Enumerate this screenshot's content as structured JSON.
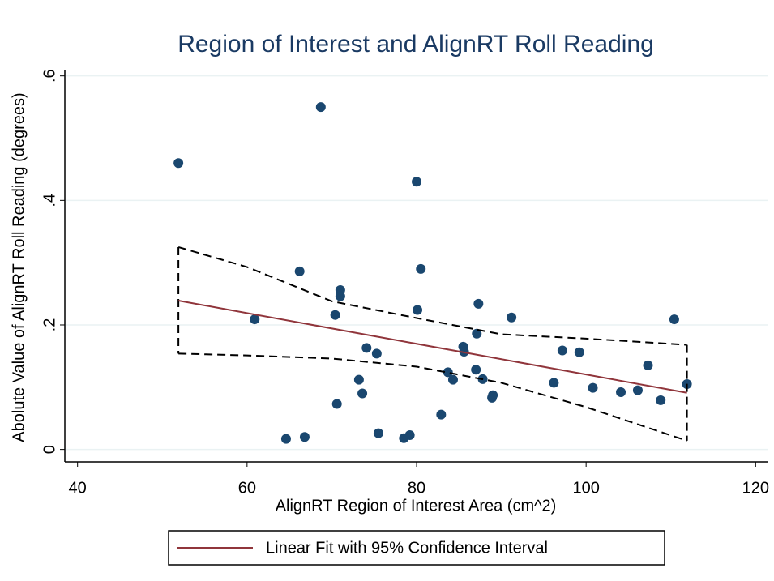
{
  "chart_data": {
    "type": "scatter",
    "title": "Region of Interest and AlignRT Roll Reading",
    "xlabel": "AlignRT Region of Interest Area (cm^2)",
    "ylabel": "Abolute Value of AlignRT Roll Reading (degrees)",
    "xlim": [
      38.5,
      121.5
    ],
    "ylim": [
      -0.02,
      0.61
    ],
    "xticks": [
      40,
      60,
      80,
      100,
      120
    ],
    "yticks": [
      0,
      {
        "value": 0.2,
        "label": ".2"
      },
      {
        "value": 0.4,
        "label": ".4"
      },
      {
        "value": 0.6,
        "label": ".6"
      }
    ],
    "grid": true,
    "points": {
      "color": "#1a476f",
      "x": [
        51.9,
        68.7,
        80.0,
        80.5,
        66.2,
        71.0,
        71.0,
        70.4,
        80.1,
        87.3,
        91.2,
        60.9,
        110.4,
        87.1,
        74.1,
        75.3,
        85.5,
        85.6,
        97.2,
        99.2,
        107.3,
        111.9,
        87.0,
        87.8,
        83.7,
        84.3,
        73.2,
        73.6,
        96.2,
        100.8,
        104.1,
        106.1,
        108.8,
        89.0,
        88.9,
        70.6,
        82.9,
        75.5,
        79.2,
        78.5,
        64.6,
        66.8
      ],
      "y": [
        0.46,
        0.55,
        0.43,
        0.29,
        0.286,
        0.256,
        0.246,
        0.216,
        0.224,
        0.234,
        0.212,
        0.209,
        0.209,
        0.186,
        0.163,
        0.154,
        0.165,
        0.157,
        0.159,
        0.156,
        0.135,
        0.105,
        0.128,
        0.113,
        0.124,
        0.112,
        0.112,
        0.09,
        0.107,
        0.099,
        0.092,
        0.095,
        0.079,
        0.087,
        0.083,
        0.073,
        0.056,
        0.026,
        0.023,
        0.018,
        0.017,
        0.02
      ]
    },
    "fit": {
      "name": "Linear Fit with 95% Confidence Interval",
      "color": "#90353b",
      "x": [
        51.9,
        111.9
      ],
      "y": [
        0.239,
        0.091
      ]
    },
    "ci": {
      "color": "#000000",
      "x": [
        51.9,
        60,
        70,
        80,
        90,
        100,
        111.9
      ],
      "upper": [
        0.325,
        0.293,
        0.238,
        0.211,
        0.185,
        0.178,
        0.168
      ],
      "lower": [
        0.154,
        0.151,
        0.146,
        0.133,
        0.107,
        0.068,
        0.014
      ]
    },
    "legend": "bottom"
  }
}
